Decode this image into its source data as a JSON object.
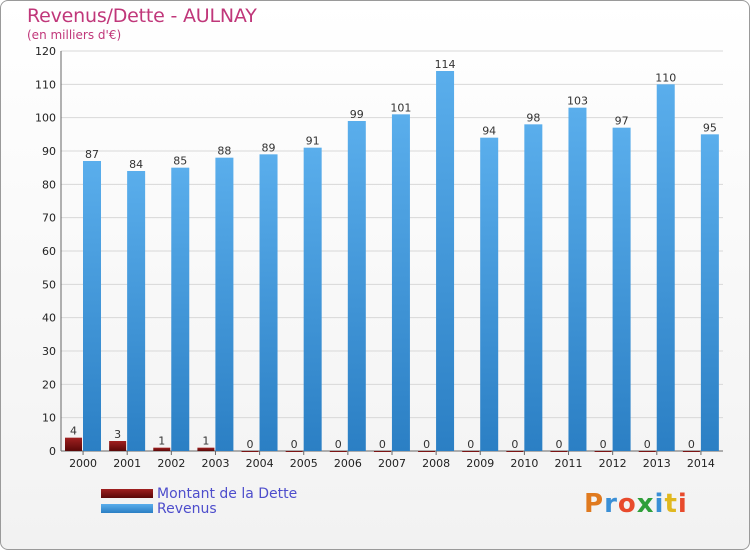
{
  "colors": {
    "revenus": "#3a90d8",
    "dette": "#7a1010",
    "title": "#c0377a",
    "legend_text": "#4d4dcc"
  },
  "chart_data": {
    "type": "bar",
    "title": "Revenus/Dette - AULNAY",
    "subtitle": "(en milliers d'€)",
    "categories": [
      "2000",
      "2001",
      "2002",
      "2003",
      "2004",
      "2005",
      "2006",
      "2007",
      "2008",
      "2009",
      "2010",
      "2011",
      "2012",
      "2013",
      "2014"
    ],
    "series": [
      {
        "name": "Montant de la Dette",
        "values": [
          4,
          3,
          1,
          1,
          0,
          0,
          0,
          0,
          0,
          0,
          0,
          0,
          0,
          0,
          0
        ]
      },
      {
        "name": "Revenus",
        "values": [
          87,
          84,
          85,
          88,
          89,
          91,
          99,
          101,
          114,
          94,
          98,
          103,
          97,
          110,
          95
        ]
      }
    ],
    "ylim": [
      0,
      120
    ],
    "yticks": [
      0,
      10,
      20,
      30,
      40,
      50,
      60,
      70,
      80,
      90,
      100,
      110,
      120
    ],
    "grid": true,
    "legend": "bottom-left"
  },
  "logo": {
    "text": "Proxiti",
    "letters": [
      "P",
      "r",
      "o",
      "x",
      "i",
      "t",
      "i"
    ]
  }
}
